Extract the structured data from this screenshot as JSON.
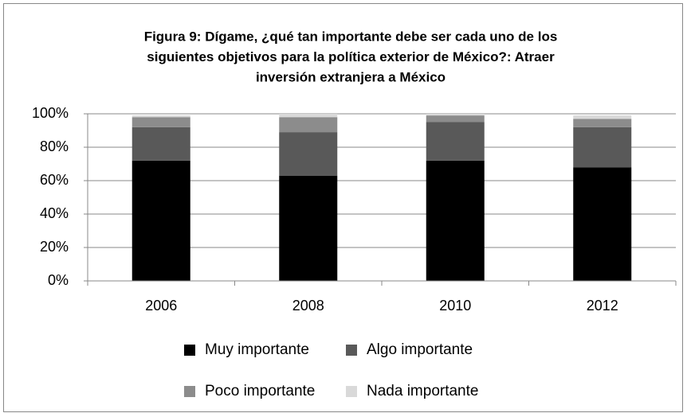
{
  "chart_data": {
    "type": "stacked_bar",
    "title": [
      "Figura 9: Dígame, ¿qué tan importante debe ser cada uno de los",
      "siguientes objetivos para la política exterior de México?: Atraer",
      "inversión extranjera a México"
    ],
    "categories": [
      "2006",
      "2008",
      "2010",
      "2012"
    ],
    "series": [
      {
        "name": "Muy importante",
        "color": "#000000",
        "values": [
          72,
          63,
          72,
          68
        ]
      },
      {
        "name": "Algo importante",
        "color": "#595959",
        "values": [
          20,
          26,
          23,
          24
        ]
      },
      {
        "name": "Poco importante",
        "color": "#8c8c8c",
        "values": [
          6,
          9,
          4,
          5
        ]
      },
      {
        "name": "Nada importante",
        "color": "#d9d9d9",
        "values": [
          1,
          2,
          1,
          2
        ]
      }
    ],
    "ylim": [
      0,
      100
    ],
    "yticks": [
      {
        "value": 0,
        "label": "0%"
      },
      {
        "value": 20,
        "label": "20%"
      },
      {
        "value": 40,
        "label": "40%"
      },
      {
        "value": 60,
        "label": "60%"
      },
      {
        "value": 80,
        "label": "80%"
      },
      {
        "value": 100,
        "label": "100%"
      }
    ],
    "grid": true
  }
}
